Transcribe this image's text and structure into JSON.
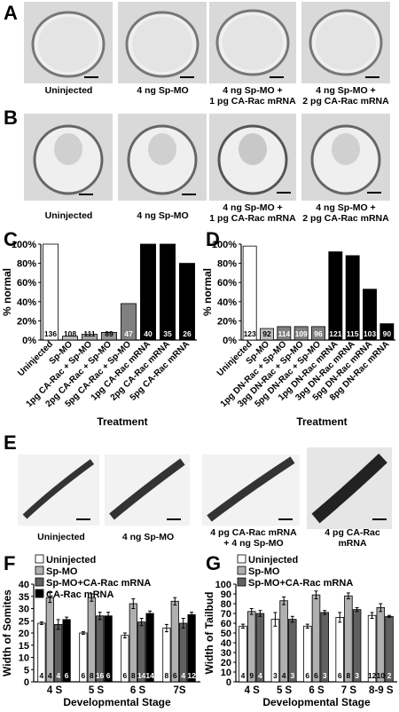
{
  "panels": {
    "A": {
      "letter": "A",
      "captions": [
        "Uninjected",
        "4 ng Sp-MO",
        "4 ng Sp-MO +\n1 pg CA-Rac mRNA",
        "4 ng Sp-MO +\n2 pg CA-Rac mRNA"
      ]
    },
    "B": {
      "letter": "B",
      "captions": [
        "Uninjected",
        "4 ng Sp-MO",
        "4 ng Sp-MO +\n1 pg CA-Rac mRNA",
        "4 ng Sp-MO +\n2 pg CA-Rac mRNA"
      ]
    },
    "E": {
      "letter": "E",
      "captions": [
        "Uninjected",
        "4 ng Sp-MO",
        "4 pg CA-Rac mRNA\n+ 4 ng Sp-MO",
        "4 pg CA-Rac\nmRNA"
      ]
    },
    "C": {
      "letter": "C"
    },
    "D": {
      "letter": "D"
    },
    "F": {
      "letter": "F"
    },
    "G": {
      "letter": "G"
    }
  },
  "chart_data": [
    {
      "id": "C",
      "type": "bar",
      "xlabel": "Treatment",
      "ylabel": "% normal",
      "ylim": [
        0,
        100
      ],
      "yticks": [
        "0%",
        "20%",
        "40%",
        "60%",
        "80%",
        "100%"
      ],
      "categories": [
        "Uninjected",
        "Sp-MO",
        "1pg CA-Rac + Sp-MO",
        "2pg CA-Rac + Sp-MO",
        "5pg CA-Rac + Sp-MO",
        "1pg CA-Rac mRNA",
        "2pg CA-Rac mRNA",
        "5pg CA-Rac mRNA"
      ],
      "values": [
        100,
        4,
        6,
        8,
        38,
        100,
        100,
        80
      ],
      "n_labels": [
        "136",
        "108",
        "111",
        "89",
        "47",
        "40",
        "35",
        "26"
      ],
      "bar_colors": [
        "#ffffff",
        "#bdbdbd",
        "#a6a6a6",
        "#969696",
        "#808080",
        "#000000",
        "#000000",
        "#000000"
      ]
    },
    {
      "id": "D",
      "type": "bar",
      "xlabel": "Treatment",
      "ylabel": "% normal",
      "ylim": [
        0,
        100
      ],
      "yticks": [
        "0%",
        "20%",
        "40%",
        "60%",
        "80%",
        "100%"
      ],
      "categories": [
        "Uninjected",
        "Sp-MO",
        "1pg DN-Rac + Sp-MO",
        "3pg DN-Rac + Sp-MO",
        "5pg DN-Rac + Sp-MO",
        "1pg DN-Rac mRNA",
        "3pg DN-Rac mRNA",
        "5pg DN-Rac mRNA",
        "8pg DN-Rac mRNA"
      ],
      "values": [
        98,
        12,
        14,
        14,
        14,
        92,
        88,
        53,
        17
      ],
      "n_labels": [
        "123",
        "92",
        "114",
        "109",
        "96",
        "121",
        "115",
        "103",
        "90"
      ],
      "bar_colors": [
        "#ffffff",
        "#bdbdbd",
        "#808080",
        "#808080",
        "#808080",
        "#000000",
        "#000000",
        "#000000",
        "#000000"
      ]
    },
    {
      "id": "F",
      "type": "bar",
      "xlabel": "Developmental Stage",
      "ylabel": "Width of Somites",
      "ylim": [
        0,
        40
      ],
      "yticks": [
        "0",
        "5",
        "10",
        "15",
        "20",
        "25",
        "30",
        "35",
        "40"
      ],
      "categories": [
        "4 S",
        "5 S",
        "6 S",
        "7S"
      ],
      "series": [
        {
          "name": "Uninjected",
          "color": "#ffffff",
          "values": [
            24,
            20,
            19,
            22
          ],
          "errors": [
            0.5,
            0.5,
            1,
            1.5
          ],
          "n": [
            "4",
            "6",
            "6",
            "8"
          ]
        },
        {
          "name": "Sp-MO",
          "color": "#b0b0b0",
          "values": [
            34.5,
            34.5,
            32,
            33
          ],
          "errors": [
            2,
            1.5,
            2,
            1.5
          ],
          "n": [
            "4",
            "8",
            "8",
            "6"
          ]
        },
        {
          "name": "Sp-MO+CA-Rac mRNA",
          "color": "#606060",
          "values": [
            23.5,
            27,
            24.5,
            24
          ],
          "errors": [
            2,
            1.5,
            1.5,
            2
          ],
          "n": [
            "4",
            "16",
            "14",
            "4"
          ]
        },
        {
          "name": "CA-Rac mRNA",
          "color": "#000000",
          "values": [
            25.5,
            27,
            28,
            27.5
          ],
          "errors": [
            1,
            1.5,
            1,
            1
          ],
          "n": [
            "6",
            "6",
            "14",
            "12"
          ]
        }
      ]
    },
    {
      "id": "G",
      "type": "bar",
      "xlabel": "Developmental Stage",
      "ylabel": "Width of Tailbud",
      "ylim": [
        0,
        100
      ],
      "yticks": [
        "0",
        "10",
        "20",
        "30",
        "40",
        "50",
        "60",
        "70",
        "80",
        "90",
        "100"
      ],
      "categories": [
        "4 S",
        "5 S",
        "6 S",
        "7 S",
        "8-9 S"
      ],
      "series": [
        {
          "name": "Uninjected",
          "color": "#ffffff",
          "values": [
            57,
            64,
            57,
            66,
            68
          ],
          "errors": [
            2,
            7,
            2,
            5,
            3
          ],
          "n": [
            "4",
            "3",
            "6",
            "6",
            "12"
          ]
        },
        {
          "name": "Sp-MO",
          "color": "#b0b0b0",
          "values": [
            72,
            83,
            89,
            88,
            76
          ],
          "errors": [
            3,
            4,
            4,
            3,
            4
          ],
          "n": [
            "9",
            "4",
            "6",
            "8",
            "10"
          ]
        },
        {
          "name": "Sp-MO+CA-Rac mRNA",
          "color": "#606060",
          "values": [
            70,
            64,
            71,
            74,
            67
          ],
          "errors": [
            3,
            3,
            2,
            2,
            1
          ],
          "n": [
            "4",
            "3",
            "3",
            "3",
            "2"
          ]
        }
      ]
    }
  ]
}
